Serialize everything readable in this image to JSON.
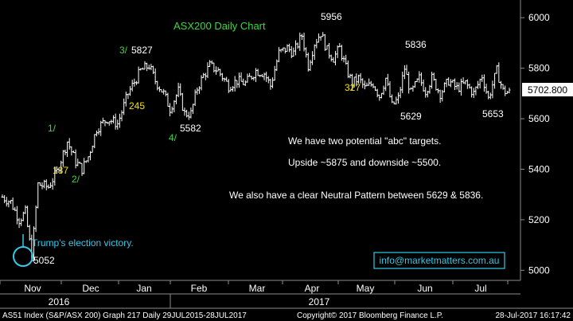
{
  "chart_data": {
    "type": "ohlc",
    "title": "ASX200 Daily Chart",
    "ylim": [
      4960,
      6070
    ],
    "yticks": [
      5000,
      5200,
      5400,
      5600,
      5800,
      6000
    ],
    "months": [
      "Nov",
      "Dec",
      "Jan",
      "Feb",
      "Mar",
      "Apr",
      "May",
      "Jun",
      "Jul"
    ],
    "years": [
      "2016",
      "2017"
    ],
    "last_price": "5702.800",
    "anchors": [
      {
        "i": 0,
        "v": 5290
      },
      {
        "i": 4,
        "v": 5270
      },
      {
        "i": 8,
        "v": 5200
      },
      {
        "i": 11,
        "v": 5230
      },
      {
        "i": 14,
        "v": 5055
      },
      {
        "i": 17,
        "v": 5340
      },
      {
        "i": 22,
        "v": 5330
      },
      {
        "i": 26,
        "v": 5390
      },
      {
        "i": 31,
        "v": 5510
      },
      {
        "i": 35,
        "v": 5430
      },
      {
        "i": 38,
        "v": 5400
      },
      {
        "i": 41,
        "v": 5450
      },
      {
        "i": 45,
        "v": 5560
      },
      {
        "i": 50,
        "v": 5600
      },
      {
        "i": 55,
        "v": 5580
      },
      {
        "i": 60,
        "v": 5700
      },
      {
        "i": 66,
        "v": 5790
      },
      {
        "i": 70,
        "v": 5810
      },
      {
        "i": 73,
        "v": 5750
      },
      {
        "i": 77,
        "v": 5700
      },
      {
        "i": 80,
        "v": 5640
      },
      {
        "i": 84,
        "v": 5710
      },
      {
        "i": 87,
        "v": 5620
      },
      {
        "i": 90,
        "v": 5620
      },
      {
        "i": 93,
        "v": 5720
      },
      {
        "i": 96,
        "v": 5770
      },
      {
        "i": 99,
        "v": 5810
      },
      {
        "i": 103,
        "v": 5790
      },
      {
        "i": 108,
        "v": 5730
      },
      {
        "i": 112,
        "v": 5750
      },
      {
        "i": 116,
        "v": 5740
      },
      {
        "i": 121,
        "v": 5790
      },
      {
        "i": 125,
        "v": 5780
      },
      {
        "i": 128,
        "v": 5730
      },
      {
        "i": 132,
        "v": 5860
      },
      {
        "i": 136,
        "v": 5880
      },
      {
        "i": 139,
        "v": 5860
      },
      {
        "i": 143,
        "v": 5930
      },
      {
        "i": 146,
        "v": 5810
      },
      {
        "i": 149,
        "v": 5900
      },
      {
        "i": 152,
        "v": 5940
      },
      {
        "i": 155,
        "v": 5870
      },
      {
        "i": 158,
        "v": 5840
      },
      {
        "i": 161,
        "v": 5880
      },
      {
        "i": 164,
        "v": 5800
      },
      {
        "i": 167,
        "v": 5740
      },
      {
        "i": 170,
        "v": 5760
      },
      {
        "i": 173,
        "v": 5720
      },
      {
        "i": 177,
        "v": 5740
      },
      {
        "i": 180,
        "v": 5690
      },
      {
        "i": 183,
        "v": 5760
      },
      {
        "i": 186,
        "v": 5650
      },
      {
        "i": 189,
        "v": 5680
      },
      {
        "i": 192,
        "v": 5800
      },
      {
        "i": 195,
        "v": 5700
      },
      {
        "i": 199,
        "v": 5760
      },
      {
        "i": 202,
        "v": 5710
      },
      {
        "i": 205,
        "v": 5760
      },
      {
        "i": 209,
        "v": 5700
      },
      {
        "i": 213,
        "v": 5750
      },
      {
        "i": 217,
        "v": 5720
      },
      {
        "i": 221,
        "v": 5740
      },
      {
        "i": 225,
        "v": 5700
      },
      {
        "i": 229,
        "v": 5770
      },
      {
        "i": 232,
        "v": 5680
      },
      {
        "i": 236,
        "v": 5790
      },
      {
        "i": 239,
        "v": 5710
      },
      {
        "i": 242,
        "v": 5703
      }
    ],
    "annotations": [
      {
        "text": "3/",
        "color": "#3cd83c"
      },
      {
        "text": "5827",
        "color": "#ffffff"
      },
      {
        "text": "245",
        "color": "#f2e200"
      },
      {
        "text": "5582",
        "color": "#ffffff"
      },
      {
        "text": "4/",
        "color": "#3cd83c"
      },
      {
        "text": "1/",
        "color": "#3cd83c"
      },
      {
        "text": "137",
        "color": "#f2e200"
      },
      {
        "text": "2/",
        "color": "#3cd83c"
      },
      {
        "text": "5052",
        "color": "#ffffff"
      },
      {
        "text": "5956",
        "color": "#ffffff"
      },
      {
        "text": "327",
        "color": "#f2e200"
      },
      {
        "text": "5836",
        "color": "#ffffff"
      },
      {
        "text": "5629",
        "color": "#ffffff"
      },
      {
        "text": "5653",
        "color": "#ffffff"
      },
      {
        "text": "Trump's election victory.",
        "color": "#35c8e8"
      }
    ],
    "notes": [
      "We have two potential \"abc\" targets.",
      "Upside ~5875 and downside ~5500.",
      "We also have a clear Neutral Pattern between 5629 & 5836."
    ],
    "email": "info@marketmatters.com.au",
    "footer": {
      "left": "AS51 Index (S&P/ASX 200) Graph 217  Daily 29JUL2015-28JUL2017",
      "middle": "Copyright© 2017 Bloomberg Finance L.P.",
      "right": "28-Jul-2017 16:17:42"
    }
  }
}
